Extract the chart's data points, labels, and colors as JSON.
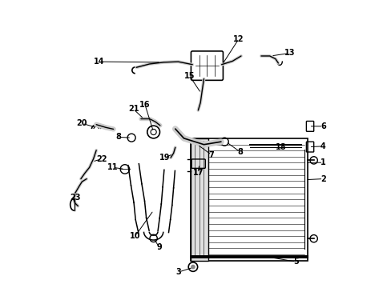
{
  "background_color": "#ffffff",
  "line_color": "#000000",
  "fig_width": 4.89,
  "fig_height": 3.6,
  "dpi": 100,
  "label_data": [
    [
      "1",
      [
        0.883,
        0.435
      ],
      [
        0.945,
        0.435
      ]
    ],
    [
      "2",
      [
        0.883,
        0.375
      ],
      [
        0.945,
        0.378
      ]
    ],
    [
      "3",
      [
        0.49,
        0.068
      ],
      [
        0.44,
        0.052
      ]
    ],
    [
      "4",
      [
        0.895,
        0.49
      ],
      [
        0.945,
        0.492
      ]
    ],
    [
      "5",
      [
        0.75,
        0.105
      ],
      [
        0.85,
        0.088
      ]
    ],
    [
      "6",
      [
        0.895,
        0.562
      ],
      [
        0.945,
        0.562
      ]
    ],
    [
      "7",
      [
        0.505,
        0.498
      ],
      [
        0.555,
        0.462
      ]
    ],
    [
      "8",
      [
        0.605,
        0.508
      ],
      [
        0.655,
        0.472
      ]
    ],
    [
      "8",
      [
        0.275,
        0.522
      ],
      [
        0.23,
        0.524
      ]
    ],
    [
      "9",
      [
        0.353,
        0.17
      ],
      [
        0.372,
        0.138
      ]
    ],
    [
      "10",
      [
        0.352,
        0.268
      ],
      [
        0.288,
        0.178
      ]
    ],
    [
      "11",
      [
        0.252,
        0.412
      ],
      [
        0.21,
        0.418
      ]
    ],
    [
      "12",
      [
        0.592,
        0.778
      ],
      [
        0.65,
        0.868
      ]
    ],
    [
      "13",
      [
        0.762,
        0.808
      ],
      [
        0.828,
        0.818
      ]
    ],
    [
      "14",
      [
        0.378,
        0.786
      ],
      [
        0.162,
        0.788
      ]
    ],
    [
      "15",
      [
        0.518,
        0.678
      ],
      [
        0.478,
        0.738
      ]
    ],
    [
      "16",
      [
        0.352,
        0.542
      ],
      [
        0.322,
        0.638
      ]
    ],
    [
      "17",
      [
        0.512,
        0.43
      ],
      [
        0.508,
        0.398
      ]
    ],
    [
      "18",
      [
        0.792,
        0.495
      ],
      [
        0.798,
        0.488
      ]
    ],
    [
      "19",
      [
        0.42,
        0.465
      ],
      [
        0.392,
        0.452
      ]
    ],
    [
      "20",
      [
        0.152,
        0.558
      ],
      [
        0.102,
        0.572
      ]
    ],
    [
      "21",
      [
        0.318,
        0.588
      ],
      [
        0.282,
        0.622
      ]
    ],
    [
      "22",
      [
        0.138,
        0.438
      ],
      [
        0.172,
        0.448
      ]
    ],
    [
      "23",
      [
        0.078,
        0.308
      ],
      [
        0.08,
        0.312
      ]
    ]
  ]
}
